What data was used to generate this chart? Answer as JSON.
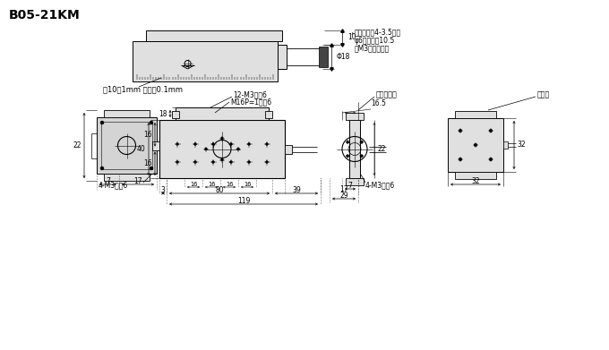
{
  "title": "B05-21KM",
  "bg_color": "#ffffff",
  "line_color": "#000000",
  "fill_color": "#e0e0e0",
  "annotations": {
    "top_label": "刷10度1mm 遙尺褡0.1mm",
    "hole_label1": "自反面開吅4-3.5通孔",
    "hole_label2": "φ6沉孔深度10.5",
    "hole_label3": "（M3用螺栓孔）",
    "label_12m3": "12-M3深度6",
    "label_m16": "M16P=1深度6",
    "label_feed": "進給用把手",
    "label_fix": "固定具",
    "label_4m3_left": "4-M3深度6",
    "label_4m3_right": "4-M3深度6"
  }
}
